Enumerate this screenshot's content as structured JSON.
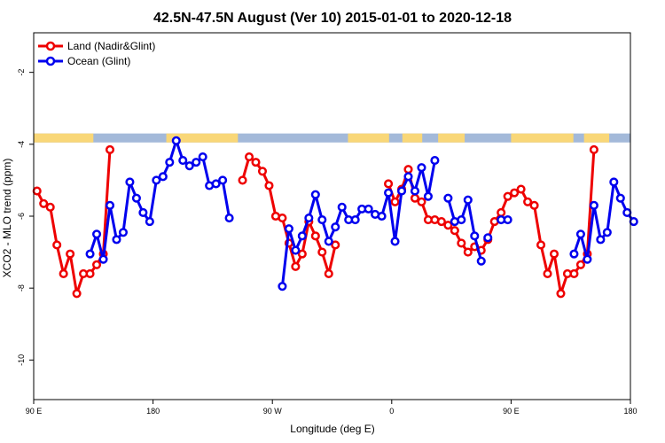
{
  "chart_data": {
    "type": "line",
    "title": "42.5N-47.5N August (Ver 10)   2015-01-01 to 2020-12-18",
    "xlabel": "Longitude (deg E)",
    "ylabel": "XCO2 - MLO trend (ppm)",
    "xlim": [
      90,
      450
    ],
    "ylim": [
      -11.1,
      -0.9
    ],
    "x_ticks": [
      {
        "value": 90,
        "label": "90 E"
      },
      {
        "value": 180,
        "label": "180"
      },
      {
        "value": 270,
        "label": "90 W"
      },
      {
        "value": 360,
        "label": "0"
      },
      {
        "value": 450,
        "label": "90 E"
      },
      {
        "value": 540,
        "label": "180"
      }
    ],
    "y_ticks": [
      {
        "value": -2,
        "label": "-2"
      },
      {
        "value": -4,
        "label": "-4"
      },
      {
        "value": -6,
        "label": "-6"
      },
      {
        "value": -8,
        "label": "-8"
      },
      {
        "value": -10,
        "label": "-10"
      }
    ],
    "xlim_display": [
      90,
      540
    ],
    "land_ocean_strip": {
      "y_range": [
        -3.95,
        -3.7
      ],
      "land_color": "#F9D778",
      "ocean_color": "#A3B9D9",
      "land_segments": [
        [
          90,
          135
        ],
        [
          190,
          244
        ],
        [
          327,
          358
        ],
        [
          368,
          383
        ],
        [
          395,
          415
        ],
        [
          450,
          497
        ],
        [
          505,
          524
        ]
      ]
    },
    "series": [
      {
        "name": "Land (Nadir&Glint)",
        "color": "#EE0000",
        "points": [
          [
            92.5,
            -5.3
          ],
          [
            97.5,
            -5.65
          ],
          [
            102.5,
            -5.75
          ],
          [
            107.5,
            -6.8
          ],
          [
            112.5,
            -7.6
          ],
          [
            117.5,
            -7.05
          ],
          [
            122.5,
            -8.15
          ],
          [
            127.5,
            -7.6
          ],
          [
            132.5,
            -7.6
          ],
          [
            137.5,
            -7.35
          ],
          [
            142.5,
            -7.05
          ],
          [
            147.5,
            -4.15
          ],
          null,
          [
            247.5,
            -5.0
          ],
          [
            252.5,
            -4.35
          ],
          [
            257.5,
            -4.5
          ],
          [
            262.5,
            -4.75
          ],
          [
            267.5,
            -5.15
          ],
          [
            272.5,
            -6.0
          ],
          [
            277.5,
            -6.05
          ],
          [
            282.5,
            -6.75
          ],
          [
            287.5,
            -7.4
          ],
          [
            292.5,
            -7.05
          ],
          [
            297.5,
            -6.15
          ],
          [
            302.5,
            -6.55
          ],
          [
            307.5,
            -7.0
          ],
          [
            312.5,
            -7.6
          ],
          [
            317.5,
            -6.8
          ],
          null,
          [
            357.5,
            -5.1
          ],
          [
            362.5,
            -5.6
          ],
          [
            367.5,
            -5.25
          ],
          [
            372.5,
            -4.7
          ],
          [
            377.5,
            -5.5
          ],
          [
            382.5,
            -5.6
          ],
          [
            387.5,
            -6.1
          ],
          [
            392.5,
            -6.1
          ],
          [
            397.5,
            -6.15
          ],
          [
            402.5,
            -6.25
          ],
          [
            407.5,
            -6.4
          ],
          [
            412.5,
            -6.75
          ],
          [
            417.5,
            -7.0
          ],
          [
            422.5,
            -6.85
          ],
          [
            427.5,
            -6.95
          ],
          [
            432.5,
            -6.65
          ],
          [
            437.5,
            -6.15
          ],
          [
            442.5,
            -5.9
          ],
          [
            447.5,
            -5.45
          ],
          [
            452.5,
            -5.35
          ],
          [
            457.5,
            -5.25
          ],
          [
            462.5,
            -5.6
          ],
          [
            467.5,
            -5.7
          ],
          [
            472.5,
            -6.8
          ],
          [
            477.5,
            -7.6
          ],
          [
            482.5,
            -7.05
          ],
          [
            487.5,
            -8.15
          ],
          [
            492.5,
            -7.6
          ],
          [
            497.5,
            -7.6
          ],
          [
            502.5,
            -7.35
          ],
          [
            507.5,
            -7.05
          ],
          [
            512.5,
            -4.15
          ]
        ]
      },
      {
        "name": "Ocean (Glint)",
        "color": "#0000EE",
        "points": [
          [
            132.5,
            -7.05
          ],
          [
            137.5,
            -6.5
          ],
          [
            142.5,
            -7.2
          ],
          [
            147.5,
            -5.7
          ],
          [
            152.5,
            -6.65
          ],
          [
            157.5,
            -6.45
          ],
          [
            162.5,
            -5.05
          ],
          [
            167.5,
            -5.5
          ],
          [
            172.5,
            -5.9
          ],
          [
            177.5,
            -6.15
          ],
          [
            182.5,
            -5.0
          ],
          [
            187.5,
            -4.9
          ],
          [
            192.5,
            -4.5
          ],
          [
            197.5,
            -3.9
          ],
          [
            202.5,
            -4.45
          ],
          [
            207.5,
            -4.6
          ],
          [
            212.5,
            -4.5
          ],
          [
            217.5,
            -4.35
          ],
          [
            222.5,
            -5.15
          ],
          [
            227.5,
            -5.1
          ],
          [
            232.5,
            -5.0
          ],
          [
            237.5,
            -6.05
          ],
          null,
          [
            277.5,
            -7.95
          ],
          [
            282.5,
            -6.35
          ],
          [
            287.5,
            -6.95
          ],
          [
            292.5,
            -6.55
          ],
          [
            297.5,
            -6.05
          ],
          [
            302.5,
            -5.4
          ],
          [
            307.5,
            -6.1
          ],
          [
            312.5,
            -6.7
          ],
          [
            317.5,
            -6.3
          ],
          [
            322.5,
            -5.75
          ],
          [
            327.5,
            -6.1
          ],
          [
            332.5,
            -6.1
          ],
          [
            337.5,
            -5.8
          ],
          [
            342.5,
            -5.8
          ],
          [
            347.5,
            -5.95
          ],
          [
            352.5,
            -6.0
          ],
          [
            357.5,
            -5.35
          ],
          [
            362.5,
            -6.7
          ],
          [
            367.5,
            -5.3
          ],
          [
            372.5,
            -4.9
          ],
          [
            377.5,
            -5.3
          ],
          [
            382.5,
            -4.65
          ],
          [
            387.5,
            -5.45
          ],
          [
            392.5,
            -4.45
          ],
          null,
          [
            402.5,
            -5.5
          ],
          [
            407.5,
            -6.15
          ],
          [
            412.5,
            -6.1
          ],
          [
            417.5,
            -5.55
          ],
          [
            422.5,
            -6.55
          ],
          [
            427.5,
            -7.25
          ],
          null,
          [
            432.5,
            -6.6
          ],
          null,
          [
            442.5,
            -6.1
          ],
          [
            447.5,
            -6.1
          ],
          null,
          [
            497.5,
            -7.05
          ],
          [
            502.5,
            -6.5
          ],
          [
            507.5,
            -7.2
          ],
          [
            512.5,
            -5.7
          ],
          [
            517.5,
            -6.65
          ],
          [
            522.5,
            -6.45
          ],
          [
            527.5,
            -5.05
          ],
          [
            532.5,
            -5.5
          ],
          [
            537.5,
            -5.9
          ],
          [
            542.5,
            -6.15
          ]
        ]
      }
    ],
    "legend_position": "top-left",
    "grid": false
  }
}
